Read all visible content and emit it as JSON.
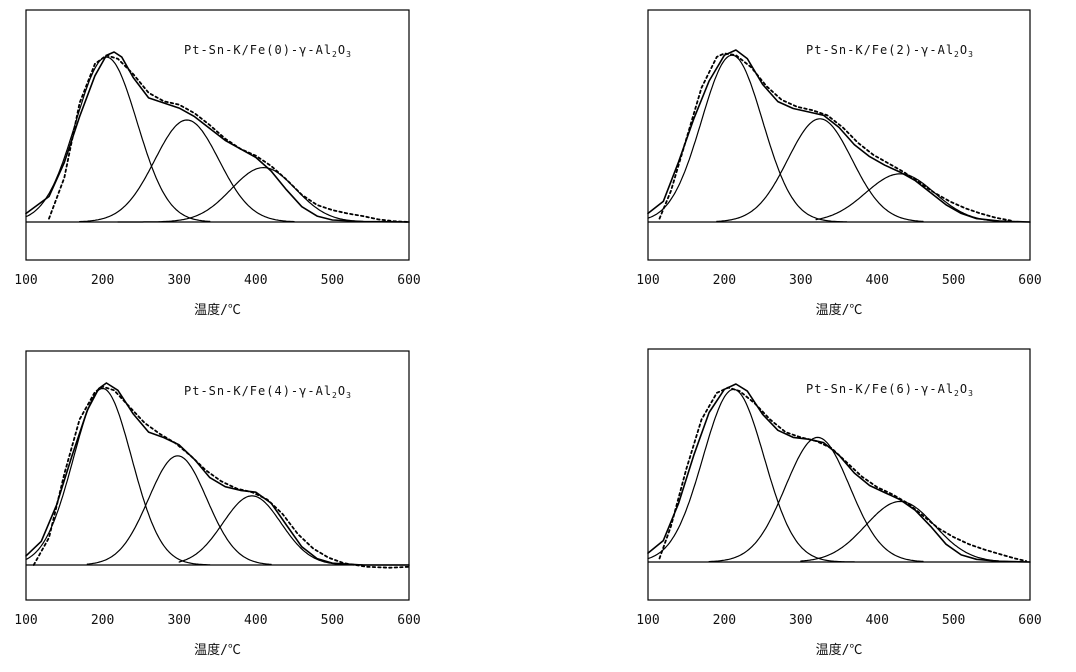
{
  "chart_data": [
    {
      "type": "line",
      "title": "Pt-Sn-K/Fe(0)-γ-Al2O3",
      "title_parts": {
        "prefix": "Pt-Sn-K/Fe(0)-γ-Al",
        "sub1": "2",
        "mid": "O",
        "sub2": "3"
      },
      "xlabel": "温度/℃",
      "ylabel": "",
      "xlim": [
        100,
        600
      ],
      "xticks": [
        "100",
        "200",
        "300",
        "400",
        "500",
        "600"
      ],
      "grid": false,
      "series": [
        {
          "role": "measured",
          "style": "solid",
          "points": [
            [
              100,
              0.05
            ],
            [
              130,
              0.15
            ],
            [
              150,
              0.35
            ],
            [
              170,
              0.62
            ],
            [
              190,
              0.86
            ],
            [
              205,
              0.98
            ],
            [
              215,
              1.0
            ],
            [
              225,
              0.97
            ],
            [
              240,
              0.85
            ],
            [
              260,
              0.73
            ],
            [
              280,
              0.7
            ],
            [
              300,
              0.67
            ],
            [
              320,
              0.62
            ],
            [
              340,
              0.55
            ],
            [
              360,
              0.48
            ],
            [
              380,
              0.43
            ],
            [
              400,
              0.38
            ],
            [
              420,
              0.3
            ],
            [
              440,
              0.19
            ],
            [
              460,
              0.09
            ],
            [
              480,
              0.035
            ],
            [
              500,
              0.012
            ],
            [
              540,
              0.003
            ],
            [
              580,
              0.001
            ],
            [
              600,
              0.0
            ]
          ]
        },
        {
          "role": "fit-sum",
          "style": "dashed",
          "points": [
            [
              130,
              0.02
            ],
            [
              150,
              0.26
            ],
            [
              170,
              0.7
            ],
            [
              190,
              0.93
            ],
            [
              205,
              0.98
            ],
            [
              220,
              0.96
            ],
            [
              240,
              0.87
            ],
            [
              260,
              0.76
            ],
            [
              280,
              0.71
            ],
            [
              300,
              0.69
            ],
            [
              320,
              0.64
            ],
            [
              340,
              0.57
            ],
            [
              360,
              0.49
            ],
            [
              380,
              0.43
            ],
            [
              400,
              0.39
            ],
            [
              420,
              0.33
            ],
            [
              440,
              0.25
            ],
            [
              460,
              0.16
            ],
            [
              480,
              0.1
            ],
            [
              500,
              0.07
            ],
            [
              520,
              0.05
            ],
            [
              540,
              0.035
            ],
            [
              560,
              0.015
            ],
            [
              580,
              0.005
            ],
            [
              600,
              0.0
            ]
          ]
        },
        {
          "role": "component",
          "style": "solid",
          "peak_center": 205,
          "peak_height": 0.97,
          "sigma": 40,
          "x_start": 100,
          "x_end": 340
        },
        {
          "role": "component",
          "style": "solid",
          "peak_center": 310,
          "peak_height": 0.6,
          "sigma": 42,
          "x_start": 170,
          "x_end": 450
        },
        {
          "role": "component",
          "style": "solid",
          "peak_center": 410,
          "peak_height": 0.32,
          "sigma": 42,
          "x_start": 220,
          "x_end": 560
        }
      ]
    },
    {
      "type": "line",
      "title": "Pt-Sn-K/Fe(2)-γ-Al2O3",
      "title_parts": {
        "prefix": "Pt-Sn-K/Fe(2)-γ-Al",
        "sub1": "2",
        "mid": "O",
        "sub2": "3"
      },
      "xlabel": "温度/℃",
      "ylabel": "",
      "xlim": [
        100,
        600
      ],
      "xticks": [
        "100",
        "200",
        "300",
        "400",
        "500",
        "600"
      ],
      "grid": false,
      "series": [
        {
          "role": "measured",
          "style": "solid",
          "points": [
            [
              100,
              0.05
            ],
            [
              120,
              0.12
            ],
            [
              140,
              0.35
            ],
            [
              160,
              0.6
            ],
            [
              180,
              0.82
            ],
            [
              200,
              0.97
            ],
            [
              215,
              1.0
            ],
            [
              230,
              0.95
            ],
            [
              250,
              0.8
            ],
            [
              270,
              0.7
            ],
            [
              290,
              0.66
            ],
            [
              310,
              0.64
            ],
            [
              330,
              0.62
            ],
            [
              350,
              0.55
            ],
            [
              370,
              0.45
            ],
            [
              390,
              0.38
            ],
            [
              410,
              0.33
            ],
            [
              430,
              0.29
            ],
            [
              450,
              0.24
            ],
            [
              470,
              0.17
            ],
            [
              490,
              0.1
            ],
            [
              510,
              0.05
            ],
            [
              530,
              0.02
            ],
            [
              560,
              0.005
            ],
            [
              600,
              0.0
            ]
          ]
        },
        {
          "role": "fit-sum",
          "style": "dashed",
          "points": [
            [
              115,
              0.02
            ],
            [
              130,
              0.18
            ],
            [
              150,
              0.48
            ],
            [
              170,
              0.78
            ],
            [
              190,
              0.96
            ],
            [
              200,
              0.98
            ],
            [
              215,
              0.97
            ],
            [
              235,
              0.9
            ],
            [
              255,
              0.79
            ],
            [
              275,
              0.71
            ],
            [
              295,
              0.67
            ],
            [
              315,
              0.65
            ],
            [
              335,
              0.62
            ],
            [
              355,
              0.55
            ],
            [
              375,
              0.46
            ],
            [
              395,
              0.39
            ],
            [
              415,
              0.34
            ],
            [
              435,
              0.29
            ],
            [
              455,
              0.23
            ],
            [
              475,
              0.17
            ],
            [
              495,
              0.12
            ],
            [
              515,
              0.08
            ],
            [
              535,
              0.05
            ],
            [
              555,
              0.025
            ],
            [
              575,
              0.008
            ]
          ]
        },
        {
          "role": "component",
          "style": "solid",
          "peak_center": 210,
          "peak_height": 0.97,
          "sigma": 40,
          "x_start": 100,
          "x_end": 360
        },
        {
          "role": "component",
          "style": "solid",
          "peak_center": 325,
          "peak_height": 0.6,
          "sigma": 42,
          "x_start": 190,
          "x_end": 460
        },
        {
          "role": "component",
          "style": "solid",
          "peak_center": 430,
          "peak_height": 0.28,
          "sigma": 45,
          "x_start": 320,
          "x_end": 580
        }
      ]
    },
    {
      "type": "line",
      "title": "Pt-Sn-K/Fe(4)-γ-Al2O3",
      "title_parts": {
        "prefix": "Pt-Sn-K/Fe(4)-γ-Al",
        "sub1": "2",
        "mid": "O",
        "sub2": "3"
      },
      "xlabel": "温度/℃",
      "ylabel": "",
      "xlim": [
        100,
        600
      ],
      "xticks": [
        "100",
        "200",
        "300",
        "400",
        "500",
        "600"
      ],
      "grid": false,
      "series": [
        {
          "role": "measured",
          "style": "solid",
          "points": [
            [
              100,
              0.05
            ],
            [
              120,
              0.13
            ],
            [
              140,
              0.33
            ],
            [
              160,
              0.6
            ],
            [
              180,
              0.85
            ],
            [
              195,
              0.97
            ],
            [
              205,
              1.0
            ],
            [
              220,
              0.96
            ],
            [
              240,
              0.83
            ],
            [
              260,
              0.73
            ],
            [
              280,
              0.7
            ],
            [
              300,
              0.66
            ],
            [
              320,
              0.58
            ],
            [
              340,
              0.48
            ],
            [
              360,
              0.43
            ],
            [
              380,
              0.41
            ],
            [
              400,
              0.4
            ],
            [
              420,
              0.34
            ],
            [
              440,
              0.22
            ],
            [
              460,
              0.1
            ],
            [
              480,
              0.035
            ],
            [
              500,
              0.01
            ],
            [
              540,
              0.0
            ],
            [
              600,
              0.0
            ]
          ]
        },
        {
          "role": "fit-sum",
          "style": "dashed",
          "points": [
            [
              110,
              0.0
            ],
            [
              130,
              0.15
            ],
            [
              150,
              0.5
            ],
            [
              170,
              0.8
            ],
            [
              190,
              0.95
            ],
            [
              200,
              0.98
            ],
            [
              215,
              0.96
            ],
            [
              235,
              0.87
            ],
            [
              255,
              0.78
            ],
            [
              275,
              0.72
            ],
            [
              295,
              0.67
            ],
            [
              315,
              0.6
            ],
            [
              335,
              0.52
            ],
            [
              355,
              0.46
            ],
            [
              375,
              0.42
            ],
            [
              395,
              0.4
            ],
            [
              415,
              0.36
            ],
            [
              435,
              0.28
            ],
            [
              455,
              0.17
            ],
            [
              475,
              0.09
            ],
            [
              495,
              0.04
            ],
            [
              515,
              0.01
            ],
            [
              545,
              -0.01
            ],
            [
              575,
              -0.015
            ],
            [
              600,
              -0.01
            ]
          ]
        },
        {
          "role": "component",
          "style": "solid",
          "peak_center": 200,
          "peak_height": 0.97,
          "sigma": 38,
          "x_start": 100,
          "x_end": 340
        },
        {
          "role": "component",
          "style": "solid",
          "peak_center": 298,
          "peak_height": 0.6,
          "sigma": 38,
          "x_start": 180,
          "x_end": 420
        },
        {
          "role": "component",
          "style": "solid",
          "peak_center": 395,
          "peak_height": 0.38,
          "sigma": 38,
          "x_start": 300,
          "x_end": 540
        }
      ]
    },
    {
      "type": "line",
      "title": "Pt-Sn-K/Fe(6)-γ-Al2O3",
      "title_parts": {
        "prefix": "Pt-Sn-K/Fe(6)-γ-Al",
        "sub1": "2",
        "mid": "O",
        "sub2": "3"
      },
      "xlabel": "温度/℃",
      "ylabel": "",
      "xlim": [
        100,
        600
      ],
      "xticks": [
        "100",
        "200",
        "300",
        "400",
        "500",
        "600"
      ],
      "grid": false,
      "series": [
        {
          "role": "measured",
          "style": "solid",
          "points": [
            [
              100,
              0.05
            ],
            [
              120,
              0.12
            ],
            [
              140,
              0.33
            ],
            [
              160,
              0.6
            ],
            [
              180,
              0.84
            ],
            [
              200,
              0.97
            ],
            [
              215,
              1.0
            ],
            [
              230,
              0.96
            ],
            [
              250,
              0.83
            ],
            [
              270,
              0.74
            ],
            [
              290,
              0.7
            ],
            [
              310,
              0.69
            ],
            [
              330,
              0.67
            ],
            [
              350,
              0.6
            ],
            [
              370,
              0.5
            ],
            [
              390,
              0.43
            ],
            [
              410,
              0.39
            ],
            [
              430,
              0.35
            ],
            [
              450,
              0.29
            ],
            [
              470,
              0.2
            ],
            [
              490,
              0.1
            ],
            [
              510,
              0.04
            ],
            [
              530,
              0.015
            ],
            [
              560,
              0.004
            ],
            [
              600,
              0.0
            ]
          ]
        },
        {
          "role": "fit-sum",
          "style": "dashed",
          "points": [
            [
              115,
              0.02
            ],
            [
              130,
              0.2
            ],
            [
              150,
              0.52
            ],
            [
              170,
              0.8
            ],
            [
              190,
              0.95
            ],
            [
              205,
              0.98
            ],
            [
              220,
              0.96
            ],
            [
              240,
              0.89
            ],
            [
              260,
              0.8
            ],
            [
              280,
              0.73
            ],
            [
              300,
              0.7
            ],
            [
              320,
              0.68
            ],
            [
              340,
              0.64
            ],
            [
              360,
              0.56
            ],
            [
              380,
              0.48
            ],
            [
              400,
              0.42
            ],
            [
              420,
              0.38
            ],
            [
              440,
              0.33
            ],
            [
              460,
              0.26
            ],
            [
              480,
              0.19
            ],
            [
              500,
              0.14
            ],
            [
              520,
              0.1
            ],
            [
              540,
              0.07
            ],
            [
              560,
              0.045
            ],
            [
              580,
              0.02
            ],
            [
              595,
              0.005
            ]
          ]
        },
        {
          "role": "component",
          "style": "solid",
          "peak_center": 212,
          "peak_height": 0.97,
          "sigma": 40,
          "x_start": 100,
          "x_end": 370
        },
        {
          "role": "component",
          "style": "solid",
          "peak_center": 322,
          "peak_height": 0.7,
          "sigma": 42,
          "x_start": 180,
          "x_end": 460
        },
        {
          "role": "component",
          "style": "solid",
          "peak_center": 430,
          "peak_height": 0.34,
          "sigma": 45,
          "x_start": 300,
          "x_end": 580
        }
      ]
    }
  ]
}
